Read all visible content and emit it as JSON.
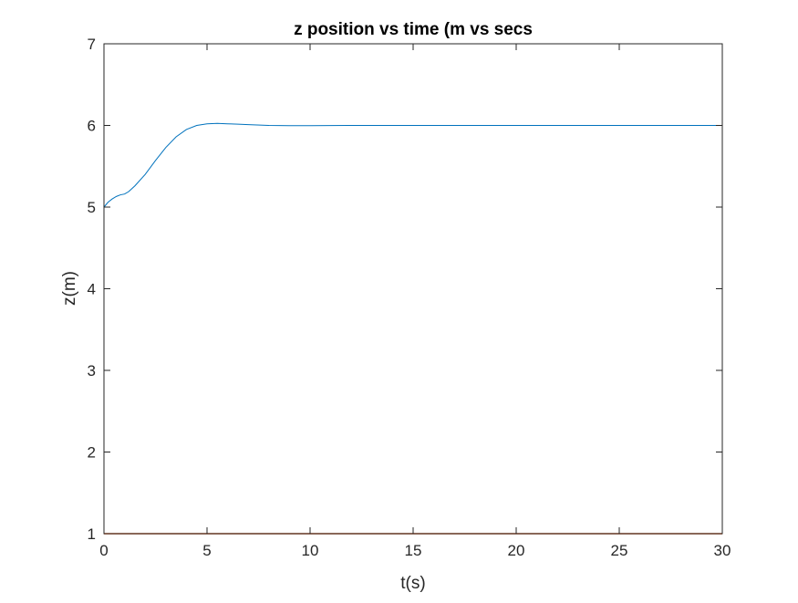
{
  "chart_data": {
    "type": "line",
    "title": "z position vs time (m vs secs",
    "xlabel": "t(s)",
    "ylabel": "z(m)",
    "xlim": [
      0,
      30
    ],
    "ylim": [
      1,
      7
    ],
    "xticks": [
      "0",
      "5",
      "10",
      "15",
      "20",
      "25",
      "30"
    ],
    "yticks": [
      "1",
      "2",
      "3",
      "4",
      "5",
      "6",
      "7"
    ],
    "grid": false,
    "legend": "none",
    "series": [
      {
        "color": "#0072BD",
        "x": [
          0,
          0.2,
          0.4,
          0.6,
          0.8,
          1.0,
          1.2,
          1.5,
          2.0,
          2.5,
          3.0,
          3.5,
          4.0,
          4.5,
          5.0,
          5.5,
          6.0,
          6.5,
          7.0,
          8.0,
          9.0,
          10.0,
          12.0,
          15.0,
          20.0,
          25.0,
          30.0
        ],
        "y": [
          5.0,
          5.06,
          5.1,
          5.13,
          5.15,
          5.16,
          5.19,
          5.26,
          5.4,
          5.57,
          5.73,
          5.86,
          5.95,
          6.0,
          6.02,
          6.025,
          6.02,
          6.015,
          6.01,
          6.0,
          5.997,
          5.997,
          6.0,
          6.0,
          6.0,
          6.0,
          6.0
        ]
      },
      {
        "color": "#D95319",
        "x": [
          0,
          30
        ],
        "y": [
          1.0,
          1.0
        ]
      }
    ]
  }
}
